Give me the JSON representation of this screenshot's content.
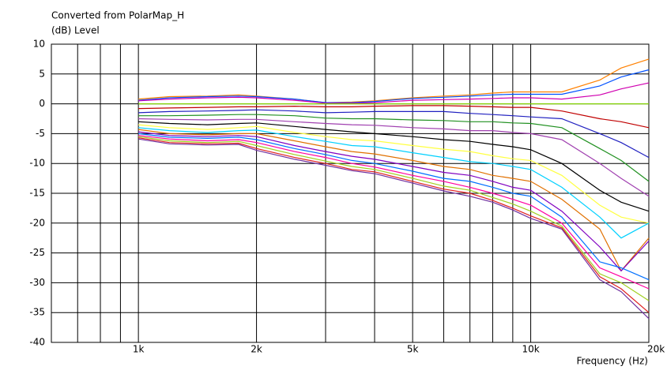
{
  "chart_data": {
    "type": "line",
    "title": "Converted from PolarMap_H",
    "ylabel": "(dB)  Level",
    "xlabel": "Frequency  (Hz)",
    "log_x": true,
    "grid": true,
    "xlim": [
      600,
      20000
    ],
    "xticks": [
      {
        "value": 1000,
        "label": "1k"
      },
      {
        "value": 2000,
        "label": "2k"
      },
      {
        "value": 5000,
        "label": "5k"
      },
      {
        "value": 10000,
        "label": "10k"
      },
      {
        "value": 20000,
        "label": "20k"
      }
    ],
    "xminorticks": [
      700,
      800,
      900,
      3000,
      4000,
      6000,
      7000,
      8000,
      9000
    ],
    "ylim": [
      -40,
      10
    ],
    "yticks": [
      10,
      5,
      0,
      -5,
      -10,
      -15,
      -20,
      -25,
      -30,
      -35,
      -40
    ],
    "x": [
      1000,
      1200,
      1500,
      1800,
      2000,
      2500,
      3000,
      3500,
      4000,
      5000,
      6000,
      7000,
      8000,
      9000,
      10000,
      12000,
      15000,
      17000,
      20000
    ],
    "series": [
      {
        "color": "#ff8000",
        "values": [
          0.8,
          1.2,
          1.3,
          1.5,
          1.3,
          0.8,
          0.2,
          0.3,
          0.5,
          1,
          1.3,
          1.5,
          1.8,
          2,
          2,
          2,
          4,
          6,
          7.5
        ]
      },
      {
        "color": "#0050ff",
        "values": [
          0.6,
          1,
          1.2,
          1.3,
          1.2,
          0.8,
          0.2,
          0.2,
          0.4,
          0.9,
          1.1,
          1.3,
          1.5,
          1.6,
          1.6,
          1.6,
          3,
          4.5,
          5.7
        ]
      },
      {
        "color": "#d000b0",
        "values": [
          0.5,
          0.8,
          1,
          1.1,
          1,
          0.6,
          0.1,
          0.1,
          0.2,
          0.6,
          0.7,
          0.8,
          0.9,
          1,
          1,
          0.8,
          1.5,
          2.5,
          3.5
        ]
      },
      {
        "color": "#80d000",
        "values": [
          0,
          0,
          0,
          0,
          0,
          0,
          0,
          0,
          0,
          0,
          0,
          0,
          0,
          0,
          0,
          0,
          0,
          0,
          0
        ]
      },
      {
        "color": "#c00000",
        "values": [
          -0.8,
          -0.7,
          -0.6,
          -0.5,
          -0.5,
          -0.4,
          -0.5,
          -0.5,
          -0.4,
          -0.3,
          -0.3,
          -0.4,
          -0.5,
          -0.6,
          -0.6,
          -1.2,
          -2.5,
          -3,
          -4
        ]
      },
      {
        "color": "#2020c0",
        "values": [
          -1.5,
          -1.3,
          -1.2,
          -1.1,
          -1,
          -1.2,
          -1.5,
          -1.4,
          -1.3,
          -1.3,
          -1.3,
          -1.6,
          -1.8,
          -2,
          -2.2,
          -2.5,
          -5,
          -6.5,
          -9
        ]
      },
      {
        "color": "#209020",
        "values": [
          -2,
          -2,
          -1.9,
          -1.8,
          -1.8,
          -2,
          -2.4,
          -2.5,
          -2.5,
          -2.7,
          -2.8,
          -3,
          -3,
          -3.2,
          -3.3,
          -4,
          -7.5,
          -9.5,
          -13
        ]
      },
      {
        "color": "#a040b0",
        "values": [
          -2.5,
          -2.6,
          -2.7,
          -2.6,
          -2.6,
          -3,
          -3.3,
          -3.5,
          -3.6,
          -4,
          -4.2,
          -4.5,
          -4.5,
          -4.8,
          -5,
          -6,
          -10,
          -12.5,
          -15.5
        ]
      },
      {
        "color": "#000000",
        "values": [
          -3,
          -3.3,
          -3.5,
          -3.3,
          -3.2,
          -3.8,
          -4.3,
          -4.7,
          -5,
          -5.5,
          -6,
          -6.3,
          -6.8,
          -7.2,
          -7.7,
          -10,
          -14.5,
          -16.5,
          -18
        ]
      },
      {
        "color": "#ffff40",
        "values": [
          -3.5,
          -4,
          -4.3,
          -4,
          -3.8,
          -4.8,
          -5.5,
          -6,
          -6.2,
          -7,
          -7.6,
          -8,
          -8.7,
          -9.2,
          -9.5,
          -12,
          -17,
          -19,
          -20
        ]
      },
      {
        "color": "#00d0ff",
        "values": [
          -4,
          -4.5,
          -4.8,
          -4.5,
          -4.4,
          -5.5,
          -6.3,
          -7,
          -7.2,
          -8.2,
          -9,
          -9.7,
          -10,
          -10.5,
          -11,
          -14,
          -19,
          -22.5,
          -20
        ]
      },
      {
        "color": "#e07000",
        "values": [
          -4.3,
          -5,
          -5.2,
          -5,
          -5,
          -6.2,
          -7.2,
          -8,
          -8.4,
          -9.5,
          -10.5,
          -11,
          -12,
          -12.5,
          -13,
          -16,
          -21,
          -28,
          -22.5
        ]
      },
      {
        "color": "#8000c0",
        "values": [
          -4.7,
          -5.3,
          -5.5,
          -5.3,
          -5.5,
          -7,
          -8,
          -8.8,
          -9.3,
          -10.5,
          -11.5,
          -12,
          -13,
          -14,
          -14.5,
          -18,
          -24,
          -28,
          -23
        ]
      },
      {
        "color": "#0070ff",
        "values": [
          -5,
          -5.6,
          -5.8,
          -5.6,
          -6,
          -7.5,
          -8.5,
          -9.5,
          -10,
          -11.3,
          -12.5,
          -13,
          -14,
          -15,
          -15.5,
          -19,
          -26.5,
          -27.5,
          -29.5
        ]
      },
      {
        "color": "#ff00a0",
        "values": [
          -5.3,
          -5.9,
          -6.2,
          -6,
          -6.5,
          -8,
          -9,
          -10,
          -10.6,
          -12,
          -13,
          -14,
          -15,
          -16,
          -17,
          -20,
          -27.5,
          -29,
          -31
        ]
      },
      {
        "color": "#a0d020",
        "values": [
          -5.5,
          -6.2,
          -6.5,
          -6.3,
          -7,
          -8.5,
          -9.6,
          -10.5,
          -11,
          -12.5,
          -13.8,
          -14.5,
          -15.7,
          -16.8,
          -18,
          -20.5,
          -28.5,
          -30,
          -33
        ]
      },
      {
        "color": "#e02020",
        "values": [
          -5.7,
          -6.5,
          -6.7,
          -6.6,
          -7.5,
          -9,
          -10,
          -11,
          -11.4,
          -13,
          -14.3,
          -15,
          -16.2,
          -17.5,
          -18.8,
          -20.8,
          -29,
          -31,
          -35
        ]
      },
      {
        "color": "#7030a0",
        "values": [
          -5.9,
          -6.7,
          -6.9,
          -6.8,
          -7.8,
          -9.3,
          -10.3,
          -11.2,
          -11.7,
          -13.3,
          -14.6,
          -15.5,
          -16.5,
          -17.8,
          -19.2,
          -21,
          -29.5,
          -31.5,
          -36
        ]
      }
    ]
  }
}
